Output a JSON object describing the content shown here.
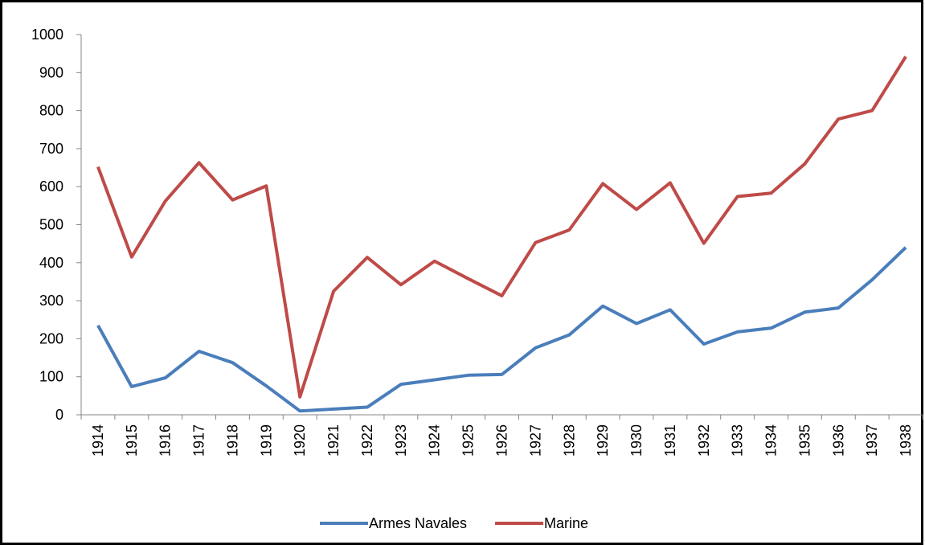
{
  "chart_data": {
    "type": "line",
    "categories": [
      "1914",
      "1915",
      "1916",
      "1917",
      "1918",
      "1919",
      "1920",
      "1921",
      "1922",
      "1923",
      "1924",
      "1925",
      "1926",
      "1927",
      "1928",
      "1929",
      "1930",
      "1931",
      "1932",
      "1933",
      "1934",
      "1935",
      "1936",
      "1937",
      "1938"
    ],
    "series": [
      {
        "name": "Armes Navales",
        "color": "#4a7ebb",
        "values": [
          235,
          74,
          97,
          167,
          137,
          76,
          10,
          15,
          20,
          80,
          92,
          104,
          106,
          176,
          210,
          286,
          240,
          276,
          186,
          218,
          228,
          270,
          281,
          355,
          440
        ]
      },
      {
        "name": "Marine",
        "color": "#be4b48",
        "values": [
          652,
          415,
          562,
          663,
          565,
          602,
          47,
          325,
          414,
          342,
          404,
          358,
          313,
          453,
          486,
          608,
          540,
          610,
          451,
          574,
          583,
          660,
          778,
          800,
          942
        ]
      }
    ],
    "ylim": [
      0,
      1000
    ],
    "yticks": [
      0,
      100,
      200,
      300,
      400,
      500,
      600,
      700,
      800,
      900,
      1000
    ],
    "grid": false,
    "legend": "bottom"
  }
}
